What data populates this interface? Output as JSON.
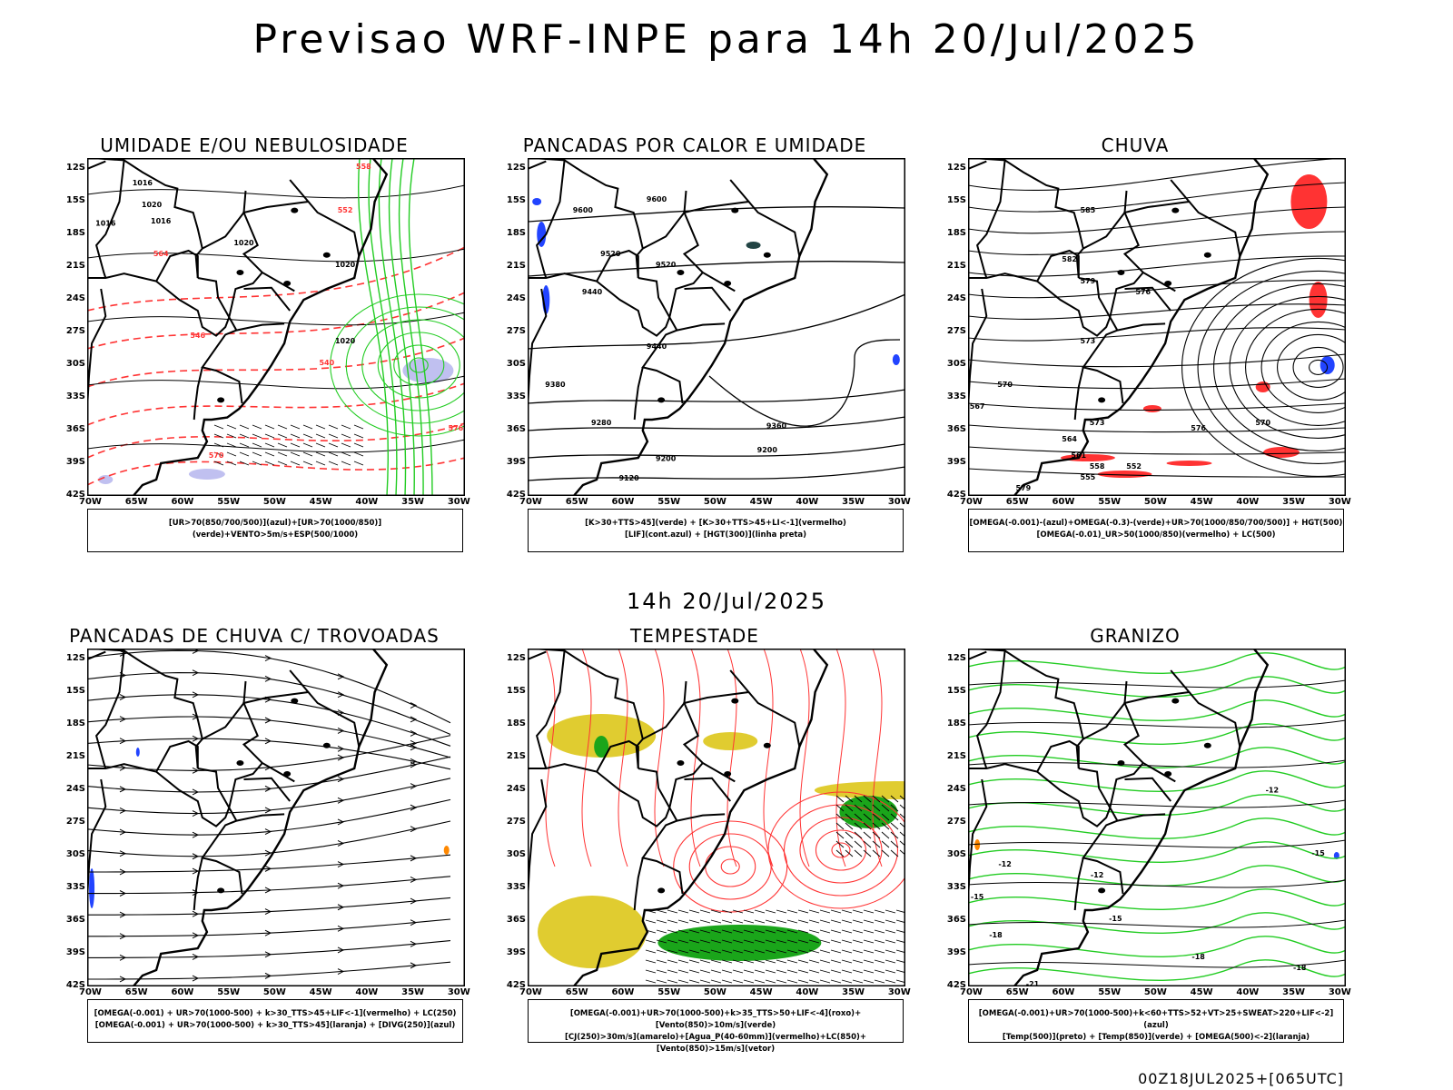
{
  "page": {
    "title": "Previsao WRF-INPE  para 14h 20/Jul/2025",
    "subtitle": "14h 20/Jul/2025",
    "footer": "00Z18JUL2025+[065UTC]"
  },
  "axes": {
    "lat_labels": [
      "12S",
      "15S",
      "18S",
      "21S",
      "24S",
      "27S",
      "30S",
      "33S",
      "36S",
      "39S",
      "42S"
    ],
    "lon_labels": [
      "70W",
      "65W",
      "60W",
      "55W",
      "50W",
      "45W",
      "40W",
      "35W",
      "30W"
    ]
  },
  "colors": {
    "coast": "#000000",
    "green": "#22cc22",
    "red": "#ff3333",
    "blue": "#2244ff",
    "lavender": "#c0c0f0",
    "yellow": "#e0cc30",
    "darkgreen": "#1aa51a",
    "orange": "#ff8800"
  },
  "panels": [
    {
      "id": "umidade",
      "title": "UMIDADE E/OU NEBULOSIDADE",
      "legend": [
        "[UR>70(850/700/500)](azul)+[UR>70(1000/850)](verde)+VENTO>5m/s+ESP(500/1000)"
      ],
      "contour_labels": [
        "1016",
        "1016",
        "1016",
        "1020",
        "1020",
        "1020",
        "1020",
        "576",
        "570",
        "564",
        "558",
        "552",
        "546",
        "540"
      ]
    },
    {
      "id": "pancadas-calor",
      "title": "PANCADAS POR CALOR E UMIDADE",
      "legend": [
        "[K>30+TTS>45](verde) + [K>30+TTS>45+LI<-1](vermelho)",
        "[LIF](cont.azul) + [HGT(300)](linha preta)"
      ],
      "contour_labels": [
        "9600",
        "9600",
        "9520",
        "9520",
        "9440",
        "9440",
        "9360",
        "9380",
        "9280",
        "9200",
        "9120",
        "9200"
      ]
    },
    {
      "id": "chuva",
      "title": "CHUVA",
      "legend": [
        "[OMEGA(-0.001)-(azul)+OMEGA(-0.3)-(verde)+UR>70(1000/850/700/500)] + HGT(500)",
        "[OMEGA(-0.01)_UR>50(1000/850)(vermelho) + LC(500)"
      ],
      "contour_labels": [
        "585",
        "582",
        "579",
        "576",
        "573",
        "570",
        "567",
        "564",
        "561",
        "558",
        "555",
        "552",
        "579",
        "576",
        "573",
        "570"
      ]
    },
    {
      "id": "trovoadas",
      "title": "PANCADAS DE CHUVA C/ TROVOADAS",
      "legend": [
        "[OMEGA(-0.001) + UR>70(1000-500) + k>30_TTS>45+LIF<-1](vermelho) + LC(250)",
        "[OMEGA(-0.001) + UR>70(1000-500) + k>30_TTS>45](laranja) + [DIVG(250)](azul)"
      ],
      "contour_labels": []
    },
    {
      "id": "tempestade",
      "title": "TEMPESTADE",
      "legend": [
        "[OMEGA(-0.001)+UR>70(1000-500)+k>35_TTS>50+LIF<-4](roxo)+[Vento(850)>10m/s](verde)",
        "[CJ(250)>30m/s](amarelo)+[Agua_P(40-60mm)](vermelho)+LC(850)+[Vento(850)>15m/s](vetor)"
      ],
      "contour_labels": []
    },
    {
      "id": "granizo",
      "title": "GRANIZO",
      "legend": [
        "[OMEGA(-0.001)+UR>70(1000-500)+k<60+TTS>52+VT>25+SWEAT>220+LIF<-2](azul)",
        "[Temp(500)](preto) + [Temp(850)](verde) + [OMEGA(500)<-2](laranja)"
      ],
      "contour_labels": [
        "-12",
        "-12",
        "-15",
        "-15",
        "-18",
        "-18",
        "-21",
        "-15",
        "-18",
        "-12"
      ]
    }
  ]
}
